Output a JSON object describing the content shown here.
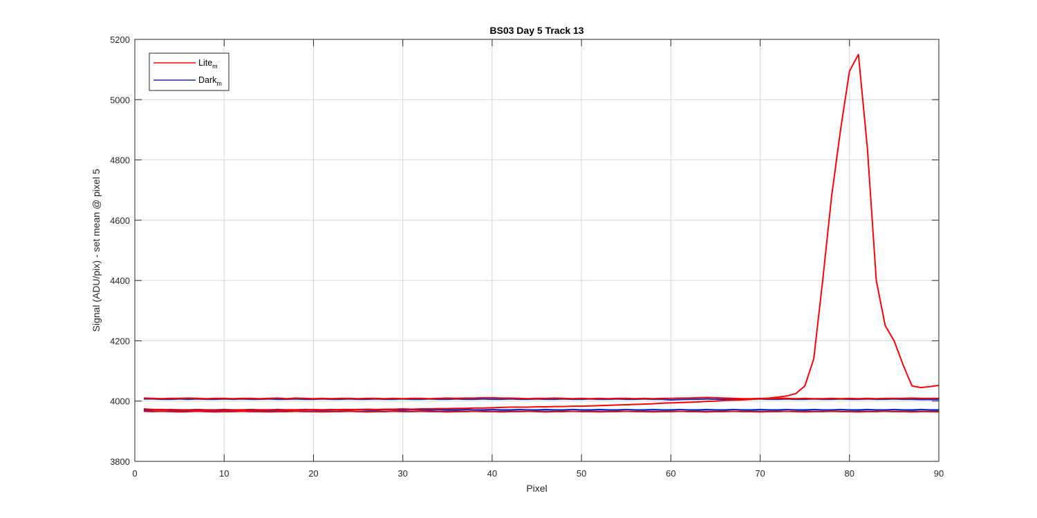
{
  "chart_data": {
    "type": "line",
    "title": "BS03 Day 5 Track 13",
    "xlabel": "Pixel",
    "ylabel": "Signal (ADU/pix) - set mean @ pixel 5",
    "xlim": [
      0,
      90
    ],
    "ylim": [
      3800,
      5200
    ],
    "xticks": [
      "0",
      "10",
      "20",
      "30",
      "40",
      "50",
      "60",
      "70",
      "80",
      "90"
    ],
    "yticks": [
      "3800",
      "4000",
      "4200",
      "4400",
      "4600",
      "4800",
      "5000",
      "5200"
    ],
    "grid": true,
    "legend": {
      "position": "top-left",
      "entries": [
        {
          "base": "Lite",
          "sub": "m",
          "color": "#ff0000"
        },
        {
          "base": "Dark",
          "sub": "m",
          "color": "#0033cc"
        }
      ]
    },
    "x": [
      1,
      2,
      3,
      4,
      5,
      6,
      7,
      8,
      9,
      10,
      11,
      12,
      13,
      14,
      15,
      16,
      17,
      18,
      19,
      20,
      21,
      22,
      23,
      24,
      25,
      26,
      27,
      28,
      29,
      30,
      31,
      32,
      33,
      34,
      35,
      36,
      37,
      38,
      39,
      40,
      41,
      42,
      43,
      44,
      45,
      46,
      47,
      48,
      49,
      50,
      51,
      52,
      53,
      54,
      55,
      56,
      57,
      58,
      59,
      60,
      61,
      62,
      63,
      64,
      65,
      66,
      67,
      68,
      69,
      70,
      71,
      72,
      73,
      74,
      75,
      76,
      77,
      78,
      79,
      80,
      81,
      82,
      83,
      84,
      85,
      86,
      87,
      88,
      89,
      90
    ],
    "series": [
      {
        "group": "dark",
        "color": "#0033cc",
        "values": [
          4007,
          4007,
          4006,
          4006,
          4007,
          4006,
          4007,
          4006,
          4006,
          4007,
          4006,
          4007,
          4006,
          4006,
          4007,
          4006,
          4006,
          4007,
          4006,
          4006,
          4007,
          4006,
          4006,
          4007,
          4006,
          4006,
          4007,
          4006,
          4006,
          4007,
          4006,
          4006,
          4007,
          4006,
          4006,
          4007,
          4006,
          4006,
          4007,
          4006,
          4006,
          4007,
          4006,
          4006,
          4007,
          4006,
          4006,
          4007,
          4006,
          4006,
          4007,
          4006,
          4006,
          4007,
          4006,
          4006,
          4007,
          4006,
          4006,
          4004,
          4005,
          4006,
          4006,
          4007,
          4006,
          4006,
          4007,
          4006,
          4006,
          4007,
          4006,
          4006,
          4007,
          4006,
          4006,
          4007,
          4006,
          4006,
          4007,
          4006,
          4006,
          4007,
          4006,
          4006,
          4007,
          4006,
          4006,
          4005,
          4005,
          4005
        ]
      },
      {
        "group": "dark",
        "color": "#0033cc",
        "values": [
          3971,
          3972,
          3971,
          3972,
          3971,
          3971,
          3972,
          3971,
          3971,
          3972,
          3971,
          3971,
          3972,
          3971,
          3971,
          3972,
          3971,
          3971,
          3972,
          3971,
          3971,
          3972,
          3971,
          3971,
          3972,
          3971,
          3971,
          3972,
          3971,
          3971,
          3972,
          3971,
          3971,
          3972,
          3971,
          3971,
          3972,
          3971,
          3971,
          3972,
          3971,
          3971,
          3972,
          3971,
          3971,
          3972,
          3971,
          3971,
          3972,
          3971,
          3971,
          3972,
          3971,
          3971,
          3972,
          3971,
          3971,
          3972,
          3971,
          3971,
          3972,
          3971,
          3971,
          3972,
          3971,
          3971,
          3972,
          3971,
          3971,
          3972,
          3971,
          3971,
          3972,
          3971,
          3971,
          3972,
          3971,
          3971,
          3972,
          3971,
          3971,
          3972,
          3971,
          3971,
          3972,
          3971,
          3971,
          3972,
          3971,
          3971
        ]
      },
      {
        "group": "dark",
        "color": "#0033cc",
        "values": [
          3968,
          3967,
          3966,
          3967,
          3966,
          3966,
          3967,
          3966,
          3967,
          3967,
          3966,
          3967,
          3966,
          3966,
          3967,
          3966,
          3966,
          3967,
          3966,
          3966,
          3967,
          3966,
          3966,
          3967,
          3966,
          3966,
          3967,
          3966,
          3966,
          3967,
          3966,
          3966,
          3967,
          3966,
          3966,
          3967,
          3966,
          3966,
          3967,
          3966,
          3966,
          3967,
          3966,
          3966,
          3967,
          3966,
          3966,
          3967,
          3966,
          3966,
          3967,
          3966,
          3966,
          3967,
          3966,
          3966,
          3967,
          3966,
          3966,
          3967,
          3966,
          3966,
          3967,
          3966,
          3966,
          3967,
          3966,
          3966,
          3967,
          3966,
          3966,
          3967,
          3966,
          3966,
          3967,
          3966,
          3966,
          3967,
          3966,
          3966,
          3967,
          3966,
          3966,
          3967,
          3966,
          3966,
          3967,
          3966,
          3966,
          3967
        ]
      },
      {
        "group": "lite",
        "color": "#ff0000",
        "values": [
          3974,
          3972,
          3972,
          3971,
          3971,
          3970,
          3971,
          3970,
          3970,
          3971,
          3970,
          3971,
          3970,
          3971,
          3971,
          3970,
          3971,
          3971,
          3971,
          3972,
          3971,
          3971,
          3972,
          3972,
          3972,
          3973,
          3972,
          3973,
          3973,
          3974,
          3973,
          3974,
          3974,
          3975,
          3975,
          3976,
          3976,
          3977,
          3977,
          3978,
          3979,
          3980,
          3980,
          3980,
          3981,
          3981,
          3982,
          3982,
          3983,
          3983,
          3984,
          3985,
          3986,
          3987,
          3988,
          3989,
          3990,
          3991,
          3993,
          3994,
          3995,
          3996,
          3997,
          3999,
          4000,
          4002,
          4003,
          4004,
          4006,
          4008,
          4010,
          4013,
          4017,
          4025,
          4050,
          4140,
          4400,
          4680,
          4900,
          5095,
          5150,
          4840,
          4400,
          4250,
          4200,
          4120,
          4050,
          4045,
          4048,
          4052
        ]
      },
      {
        "group": "lite",
        "color": "#ff0000",
        "values": [
          4010,
          4009,
          4008,
          4009,
          4009,
          4010,
          4009,
          4008,
          4009,
          4009,
          4008,
          4009,
          4009,
          4008,
          4009,
          4010,
          4008,
          4010,
          4009,
          4008,
          4009,
          4008,
          4009,
          4009,
          4008,
          4009,
          4009,
          4008,
          4009,
          4008,
          4009,
          4009,
          4008,
          4009,
          4010,
          4009,
          4010,
          4010,
          4011,
          4011,
          4010,
          4010,
          4009,
          4008,
          4009,
          4009,
          4010,
          4009,
          4008,
          4009,
          4008,
          4009,
          4008,
          4009,
          4009,
          4008,
          4009,
          4008,
          4009,
          4009,
          4010,
          4010,
          4011,
          4012,
          4011,
          4010,
          4009,
          4008,
          4008,
          4009,
          4008,
          4009,
          4009,
          4008,
          4009,
          4008,
          4008,
          4009,
          4008,
          4009,
          4008,
          4009,
          4008,
          4009,
          4009,
          4009,
          4010,
          4009,
          4009,
          4009
        ]
      },
      {
        "group": "lite",
        "color": "#ff0000",
        "values": [
          3966,
          3965,
          3966,
          3965,
          3964,
          3965,
          3966,
          3965,
          3964,
          3965,
          3965,
          3966,
          3965,
          3965,
          3964,
          3965,
          3965,
          3966,
          3965,
          3965,
          3964,
          3965,
          3965,
          3966,
          3965,
          3964,
          3965,
          3965,
          3966,
          3965,
          3965,
          3966,
          3965,
          3965,
          3964,
          3965,
          3965,
          3966,
          3965,
          3965,
          3964,
          3965,
          3965,
          3966,
          3965,
          3964,
          3965,
          3965,
          3966,
          3965,
          3965,
          3964,
          3965,
          3965,
          3966,
          3965,
          3965,
          3964,
          3965,
          3965,
          3966,
          3965,
          3965,
          3964,
          3965,
          3965,
          3966,
          3965,
          3965,
          3964,
          3965,
          3965,
          3966,
          3965,
          3964,
          3965,
          3965,
          3966,
          3965,
          3965,
          3964,
          3965,
          3965,
          3966,
          3965,
          3965,
          3964,
          3965,
          3965,
          3964
        ]
      }
    ]
  }
}
